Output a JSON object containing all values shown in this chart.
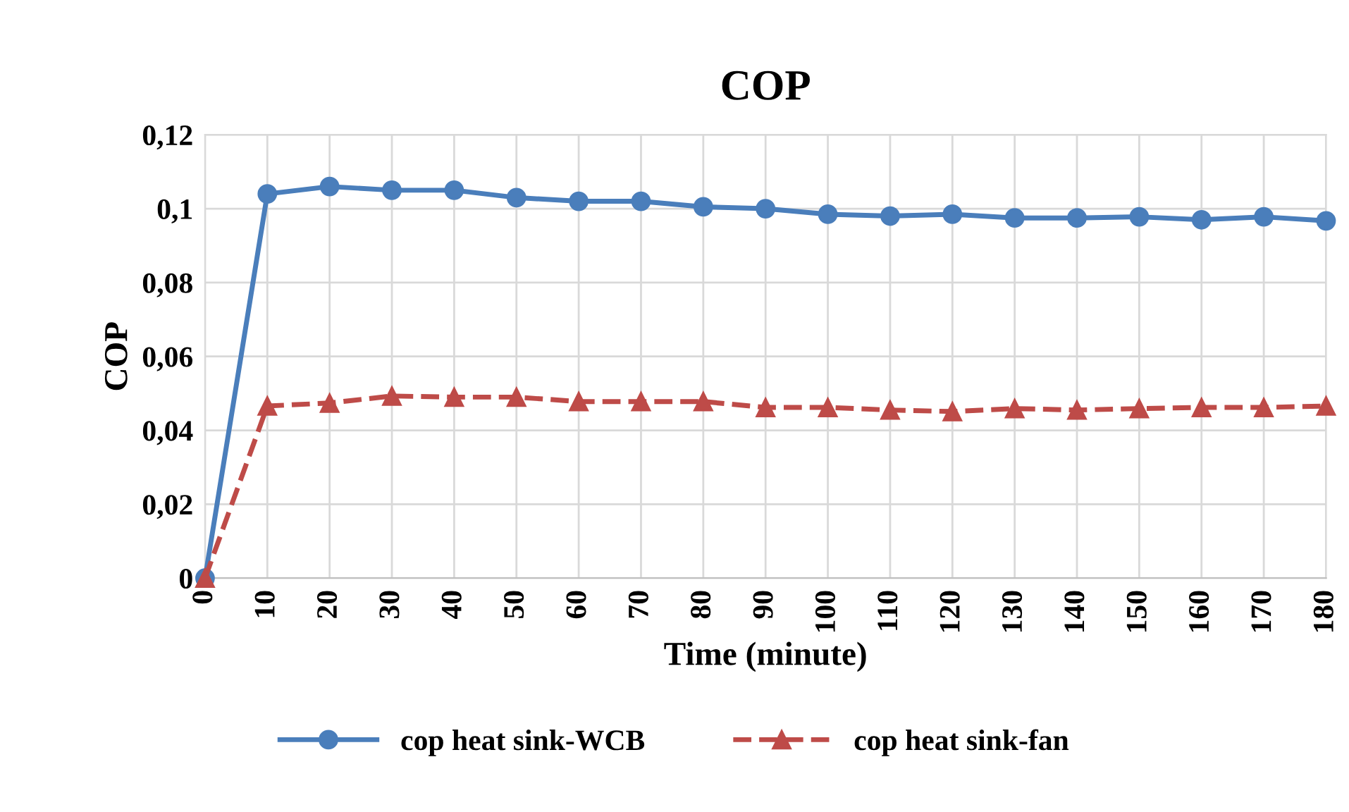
{
  "chart_data": {
    "type": "line",
    "title": "COP",
    "xlabel": "Time (minute)",
    "ylabel": "COP",
    "x": [
      0,
      10,
      20,
      30,
      40,
      50,
      60,
      70,
      80,
      90,
      100,
      110,
      120,
      130,
      140,
      150,
      160,
      170,
      180
    ],
    "xlim": [
      0,
      180
    ],
    "xticks": [
      0,
      10,
      20,
      30,
      40,
      50,
      60,
      70,
      80,
      90,
      100,
      110,
      120,
      130,
      140,
      150,
      160,
      170,
      180
    ],
    "ylim": [
      0,
      0.12
    ],
    "yticks": [
      {
        "value": 0,
        "label": "0"
      },
      {
        "value": 0.02,
        "label": "0,02"
      },
      {
        "value": 0.04,
        "label": "0,04"
      },
      {
        "value": 0.06,
        "label": "0,06"
      },
      {
        "value": 0.08,
        "label": "0,08"
      },
      {
        "value": 0.1,
        "label": "0,1"
      },
      {
        "value": 0.12,
        "label": "0,12"
      }
    ],
    "grid": true,
    "legend": "bottom",
    "series": [
      {
        "name": "cop heat sink-WCB",
        "color": "#4a7ebb",
        "marker": "circle",
        "line_style": "solid",
        "values": [
          0,
          0.104,
          0.106,
          0.105,
          0.105,
          0.103,
          0.102,
          0.102,
          0.1005,
          0.1,
          0.0985,
          0.098,
          0.0985,
          0.0975,
          0.0975,
          0.0978,
          0.097,
          0.0978,
          0.0967
        ]
      },
      {
        "name": "cop heat sink-fan",
        "color": "#be4b48",
        "marker": "triangle",
        "line_style": "dashed",
        "values": [
          0,
          0.0466,
          0.0474,
          0.0493,
          0.049,
          0.049,
          0.0478,
          0.0478,
          0.0478,
          0.0462,
          0.0462,
          0.0455,
          0.0451,
          0.0459,
          0.0455,
          0.0459,
          0.0462,
          0.0462,
          0.0466
        ]
      }
    ]
  }
}
